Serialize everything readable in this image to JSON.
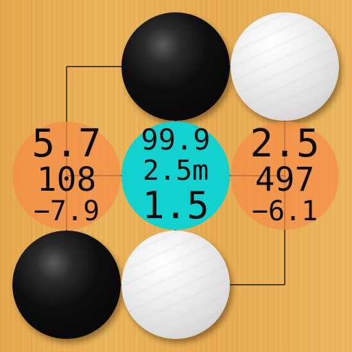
{
  "colors": {
    "board": "#e8ad4e",
    "grid_line": "#1a1a1a",
    "best_move": "#12d2cf",
    "candidate_move": "#f58c46",
    "black_stone": "#0d0d0d",
    "white_stone": "#e8e8e8"
  },
  "stones": [
    {
      "color": "black",
      "col": 1,
      "row": 0
    },
    {
      "color": "white",
      "col": 2,
      "row": 0
    },
    {
      "color": "black",
      "col": 0,
      "row": 2
    },
    {
      "color": "white",
      "col": 1,
      "row": 2
    }
  ],
  "candidates": [
    {
      "id": "left",
      "style": "orange",
      "col": 0,
      "row": 1,
      "line1": "5.7",
      "line2": "108",
      "line3": "−7.9"
    },
    {
      "id": "center",
      "style": "cyan",
      "col": 1,
      "row": 1,
      "line1": "99.9",
      "line2": "2.5m",
      "line3": "1.5"
    },
    {
      "id": "right",
      "style": "orange",
      "col": 2,
      "row": 1,
      "line1": "2.5",
      "line2": "497",
      "line3": "−6.1"
    }
  ]
}
